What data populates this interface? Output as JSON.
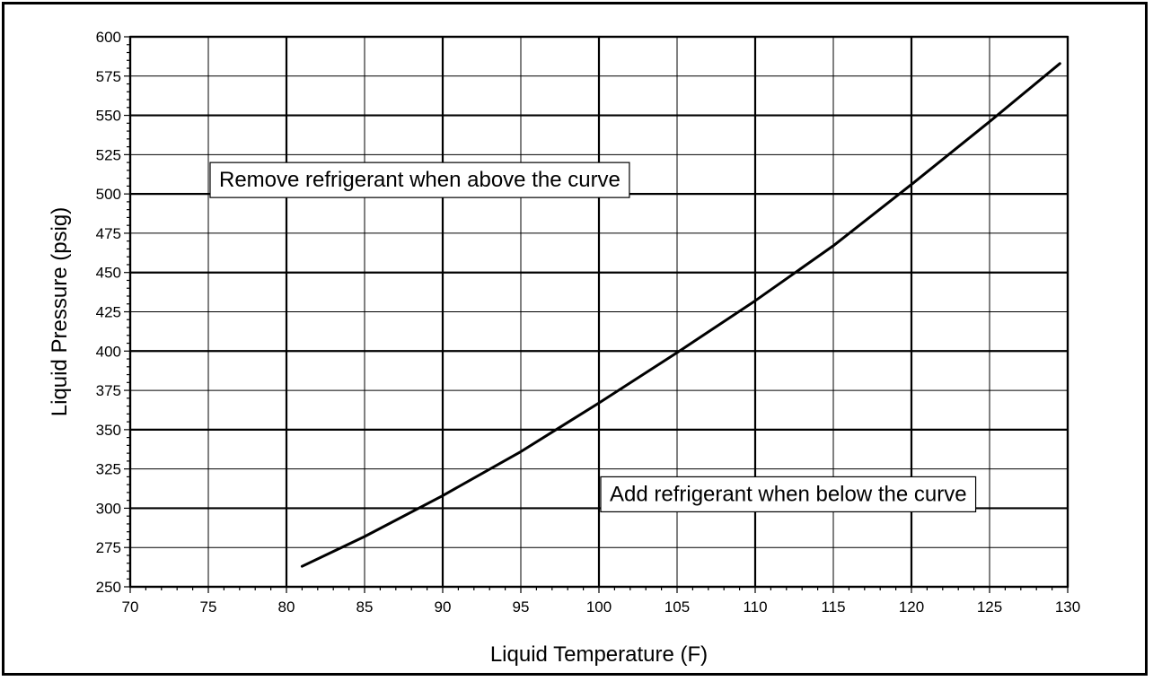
{
  "chart_data": {
    "type": "line",
    "title": "",
    "xlabel": "Liquid Temperature (F)",
    "ylabel": "Liquid Pressure (psig)",
    "xlim": [
      70,
      130
    ],
    "ylim": [
      250,
      600
    ],
    "x_ticks": [
      70,
      75,
      80,
      85,
      90,
      95,
      100,
      105,
      110,
      115,
      120,
      125,
      130
    ],
    "y_ticks": [
      250,
      275,
      300,
      325,
      350,
      375,
      400,
      425,
      450,
      475,
      500,
      525,
      550,
      575,
      600
    ],
    "grid": true,
    "legend": "none",
    "series": [
      {
        "color": "#000000",
        "x": [
          81,
          85,
          90,
          95,
          100,
          105,
          110,
          115,
          120,
          125,
          129.5
        ],
        "y": [
          263,
          282,
          308,
          336,
          367,
          399,
          432,
          467,
          506,
          546,
          583
        ]
      }
    ],
    "annotations": [
      {
        "text": "Remove refrigerant when above the curve",
        "x": 75,
        "y": 500
      },
      {
        "text": "Add refrigerant when below the curve",
        "x": 100,
        "y": 300
      }
    ]
  }
}
